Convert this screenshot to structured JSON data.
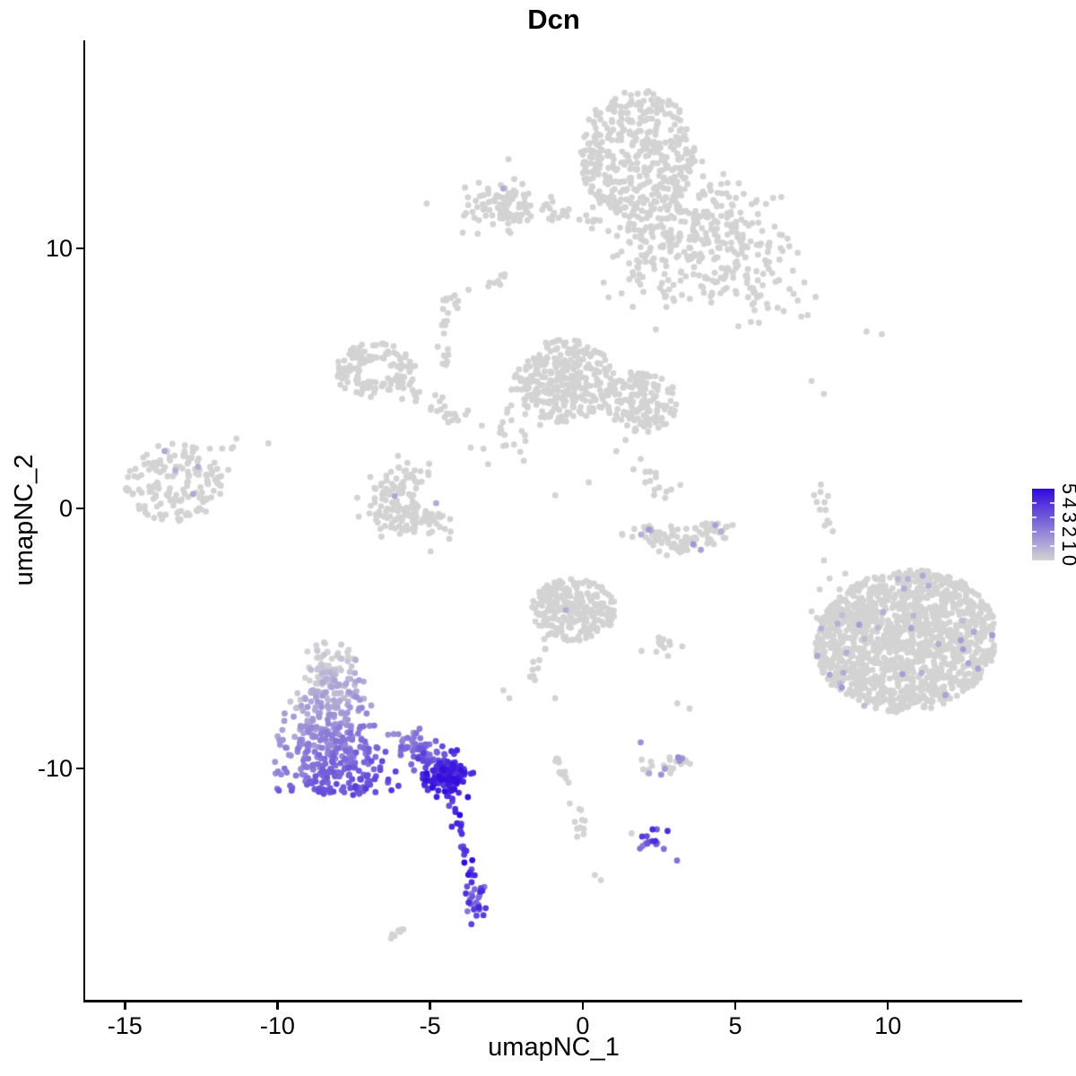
{
  "title": "Dcn",
  "axes": {
    "x": {
      "label": "umapNC_1",
      "domain": [
        -16.3,
        14.4
      ],
      "ticks": [
        -15,
        -10,
        -5,
        0,
        5,
        10
      ]
    },
    "y": {
      "label": "umapNC_2",
      "domain": [
        -18.9,
        18.0
      ],
      "ticks": [
        10,
        0,
        -10
      ]
    }
  },
  "legend": {
    "labels": [
      "5",
      "4",
      "3",
      "2",
      "1",
      "0"
    ],
    "min": 0,
    "max": 5,
    "color_low": "#D3D3D3",
    "color_high": "#300ADE"
  },
  "chart_data": {
    "type": "scatter",
    "title": "Dcn",
    "xlabel": "umapNC_1",
    "ylabel": "umapNC_2",
    "x_domain": [
      -16.3,
      14.4
    ],
    "y_domain": [
      -18.9,
      18.0
    ],
    "x_ticks": [
      -15,
      -10,
      -5,
      0,
      5,
      10
    ],
    "y_ticks": [
      10,
      0,
      -10
    ],
    "grid": false,
    "legend_position": "right",
    "color_scale": {
      "low": "#D3D3D3",
      "high": "#300ADE",
      "limits": [
        0,
        5
      ]
    },
    "point_radius_px": 3.4,
    "clusters": [
      {
        "name": "top-main",
        "type": "disc",
        "cx": 1.8,
        "cy": 13.6,
        "rx": 1.9,
        "ry": 2.5,
        "pow": 0.5,
        "n": 400
      },
      {
        "name": "top-right-arm",
        "type": "gauss",
        "cx": 3.9,
        "cy": 10.9,
        "sx": 1.5,
        "sy": 0.85,
        "rot": -20,
        "n": 240
      },
      {
        "name": "top-lower-arm",
        "type": "gauss",
        "cx": 2.2,
        "cy": 9.6,
        "sx": 0.75,
        "sy": 1.0,
        "n": 80
      },
      {
        "name": "top-right-low",
        "type": "gauss",
        "cx": 5.0,
        "cy": 8.7,
        "sx": 1.2,
        "sy": 0.65,
        "rot": -25,
        "n": 80
      },
      {
        "name": "topleft-small",
        "type": "gauss",
        "cx": -2.6,
        "cy": 11.7,
        "sx": 0.8,
        "sy": 0.5,
        "n": 105,
        "pf": 0.01,
        "pv": [
          0.8,
          1.2
        ]
      },
      {
        "name": "topleft-chain",
        "type": "trail",
        "pts": [
          [
            -1.2,
            11.4
          ],
          [
            0.5,
            11.1
          ]
        ],
        "j": 0.12,
        "n": 14
      },
      {
        "name": "dash-upper",
        "type": "trail",
        "pts": [
          [
            -3.1,
            8.5
          ],
          [
            -2.5,
            9.0
          ]
        ],
        "j": 0.07,
        "n": 7
      },
      {
        "name": "midleft-ring",
        "type": "ring",
        "cx": -6.8,
        "cy": 5.3,
        "r0": 0.5,
        "r1": 1.35,
        "sy": 0.8,
        "n": 140
      },
      {
        "name": "midleft-arm",
        "type": "trail",
        "pts": [
          [
            -5.7,
            4.4
          ],
          [
            -3.9,
            3.4
          ]
        ],
        "j": 0.18,
        "n": 24
      },
      {
        "name": "strand-up",
        "type": "trail",
        "pts": [
          [
            -4.5,
            5.6
          ],
          [
            -4.6,
            7.4
          ]
        ],
        "j": 0.09,
        "n": 12
      },
      {
        "name": "blob-above-strand",
        "type": "gauss",
        "cx": -4.4,
        "cy": 7.8,
        "sx": 0.3,
        "sy": 0.3,
        "n": 12
      },
      {
        "name": "center-left-lobe",
        "type": "disc",
        "cx": -0.6,
        "cy": 4.9,
        "rx": 1.65,
        "ry": 1.6,
        "pow": 0.6,
        "n": 300
      },
      {
        "name": "center-right-lobe",
        "type": "disc",
        "cx": 1.9,
        "cy": 4.1,
        "rx": 1.2,
        "ry": 1.2,
        "pow": 0.6,
        "n": 160
      },
      {
        "name": "center-left-sparse",
        "type": "gauss",
        "cx": -2.4,
        "cy": 3.3,
        "sx": 0.55,
        "sy": 0.85,
        "n": 30
      },
      {
        "name": "center-trail-down",
        "type": "trail",
        "pts": [
          [
            1.5,
            2.5
          ],
          [
            2.6,
            0.3
          ]
        ],
        "j": 0.22,
        "n": 12
      },
      {
        "name": "far-left",
        "type": "disc",
        "cx": -13.4,
        "cy": 1.0,
        "rx": 1.6,
        "ry": 1.5,
        "pow": 0.6,
        "n": 160,
        "pf": 0.008,
        "pv": [
          0.8,
          1.2
        ]
      },
      {
        "name": "far-left-outliers",
        "type": "gauss",
        "cx": -11.9,
        "cy": 2.1,
        "sx": 0.4,
        "sy": 0.4,
        "n": 7
      },
      {
        "name": "bowl",
        "type": "arc",
        "cx": -5.5,
        "cy": 0.2,
        "r": 1.05,
        "a0": 70,
        "a1": 330,
        "jr": 0.42,
        "sy": 0.85,
        "n": 165,
        "pf": 0.006,
        "pv": [
          0.8,
          1.2
        ]
      },
      {
        "name": "crescent",
        "type": "arc",
        "cx": 3.2,
        "cy": -0.5,
        "r": 1.25,
        "a0": 185,
        "a1": 355,
        "jr": 0.3,
        "sy": 0.75,
        "n": 105,
        "pf": 0.05,
        "pv": [
          0.8,
          1.7
        ]
      },
      {
        "name": "right-strand",
        "type": "trail",
        "pts": [
          [
            7.7,
            1.0
          ],
          [
            8.0,
            -0.9
          ]
        ],
        "j": 0.1,
        "n": 12
      },
      {
        "name": "right-big",
        "type": "disc",
        "cx": 10.6,
        "cy": -5.1,
        "rx": 3.0,
        "ry": 2.7,
        "pow": 0.5,
        "rot": 20,
        "n": 1400,
        "pf": 0.022,
        "pv": [
          0.5,
          1.5
        ]
      },
      {
        "name": "right-big-west-arm",
        "type": "gauss",
        "cx": 8.7,
        "cy": -4.2,
        "sx": 0.65,
        "sy": 0.85,
        "n": 60
      },
      {
        "name": "bottom-center",
        "type": "disc",
        "cx": -0.3,
        "cy": -3.9,
        "rx": 1.4,
        "ry": 1.2,
        "pow": 0.6,
        "n": 260,
        "pf": 0.004,
        "pv": [
          0.8,
          1.2
        ]
      },
      {
        "name": "bottom-center-trail",
        "type": "trail",
        "pts": [
          [
            -1.1,
            -5.1
          ],
          [
            -1.8,
            -6.7
          ]
        ],
        "j": 0.12,
        "n": 11
      },
      {
        "name": "small-east",
        "type": "gauss",
        "cx": 2.9,
        "cy": -5.2,
        "sx": 0.4,
        "sy": 0.22,
        "n": 14
      },
      {
        "name": "bottom-right-bits",
        "type": "disc",
        "cx": 2.6,
        "cy": -9.9,
        "rx": 0.95,
        "ry": 0.4,
        "pow": 0.5,
        "n": 26,
        "pf": 0.1,
        "pv": [
          1.0,
          2.0
        ]
      },
      {
        "name": "curve-trail",
        "type": "trail",
        "pts": [
          [
            -0.9,
            -9.6
          ],
          [
            -0.6,
            -10.8
          ],
          [
            0.0,
            -12.0
          ],
          [
            -0.1,
            -12.5
          ]
        ],
        "j": 0.12,
        "n": 22
      },
      {
        "name": "dash-bottom",
        "type": "trail",
        "pts": [
          [
            -6.4,
            -16.6
          ],
          [
            -5.8,
            -16.1
          ]
        ],
        "j": 0.06,
        "n": 7
      },
      {
        "name": "dcn-main",
        "type": "tri",
        "cx": -8.3,
        "yTop": -5.1,
        "yBot": -11.0,
        "wTop": 0.8,
        "wBot": 2.5,
        "ypow": 0.7,
        "n": 450,
        "vg": {
          "dx": 0.45,
          "dy": -0.89,
          "ox": -8.3,
          "oy": -8.0,
          "pmin": -2.6,
          "pmax": 3.8,
          "v0": -0.3,
          "v1": 3.9,
          "noise": 1.0
        }
      },
      {
        "name": "dcn-arm",
        "type": "trail",
        "pts": [
          [
            -6.1,
            -8.8
          ],
          [
            -4.9,
            -9.7
          ],
          [
            -4.2,
            -10.2
          ]
        ],
        "j": 0.3,
        "n": 115,
        "v0": 1.6,
        "v1": 4.3,
        "vnoise": 0.9
      },
      {
        "name": "dcn-knot",
        "type": "gauss",
        "cx": -4.5,
        "cy": -10.4,
        "sx": 0.42,
        "sy": 0.3,
        "n": 90,
        "v": [
          3.6,
          5.0
        ]
      },
      {
        "name": "dcn-tail",
        "type": "trail",
        "pts": [
          [
            -4.3,
            -11.2
          ],
          [
            -4.1,
            -12.3
          ],
          [
            -3.8,
            -13.4
          ],
          [
            -3.6,
            -14.4
          ]
        ],
        "j": 0.09,
        "n": 24,
        "v": [
          3.0,
          5.0
        ]
      },
      {
        "name": "dcn-foot",
        "type": "gauss",
        "cx": -3.5,
        "cy": -15.1,
        "sx": 0.26,
        "sy": 0.45,
        "n": 26,
        "v": [
          2.2,
          4.5
        ]
      },
      {
        "name": "dcn-island",
        "type": "gauss",
        "cx": 2.4,
        "cy": -12.8,
        "sx": 0.36,
        "sy": 0.25,
        "n": 16,
        "v": [
          1.8,
          4.2
        ]
      }
    ],
    "singles_gray": [
      [
        -2.7,
        8.6
      ],
      [
        -4.1,
        7.7
      ],
      [
        -10.3,
        2.5
      ],
      [
        -11.5,
        2.3
      ],
      [
        -2.6,
        2.4
      ],
      [
        -3.1,
        1.7
      ],
      [
        -0.9,
        0.5
      ],
      [
        0.2,
        1.0
      ],
      [
        1.1,
        2.2
      ],
      [
        1.9,
        1.9
      ],
      [
        2.4,
        1.2
      ],
      [
        2.7,
        0.4
      ],
      [
        3.2,
        0.9
      ],
      [
        7.5,
        4.9
      ],
      [
        7.9,
        4.4
      ],
      [
        9.3,
        6.8
      ],
      [
        9.8,
        6.7
      ],
      [
        7.9,
        -2.0
      ],
      [
        -0.9,
        -7.3
      ],
      [
        3.1,
        -7.5
      ],
      [
        3.5,
        -7.7
      ],
      [
        0.4,
        -14.1
      ],
      [
        0.6,
        -14.3
      ],
      [
        -2.6,
        -7.0
      ],
      [
        -2.4,
        -7.3
      ],
      [
        1.6,
        -12.5
      ]
    ],
    "singles_purple": [
      [
        -2.6,
        12.3,
        1.0
      ],
      [
        -12.6,
        1.6,
        1.0
      ],
      [
        -4.8,
        0.2,
        1.0
      ],
      [
        1.9,
        -9.0,
        1.6
      ]
    ]
  }
}
